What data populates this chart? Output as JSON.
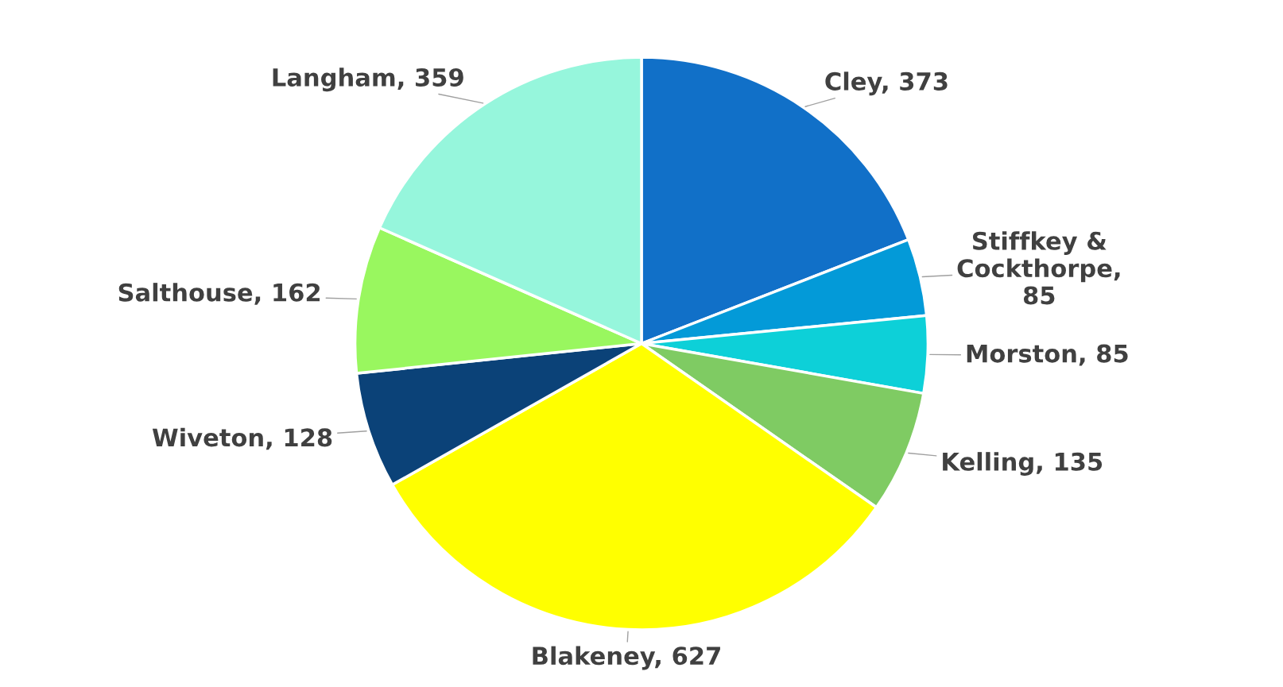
{
  "chart_data": {
    "type": "pie",
    "categories": [
      "Cley, 373",
      "Stiffkey & Cockthorpe, 85",
      "Morston, 85",
      "Kelling, 135",
      "Blakeney, 627",
      "Wiveton, 128",
      "Salthouse, 162",
      "Langham, 359"
    ],
    "values": [
      373,
      85,
      85,
      135,
      627,
      128,
      162,
      359
    ],
    "colors": [
      "#1170c8",
      "#039ad8",
      "#0dd0d8",
      "#7fcb63",
      "#ffff00",
      "#0b4278",
      "#99f75f",
      "#96f6dc"
    ],
    "legend": false
  }
}
